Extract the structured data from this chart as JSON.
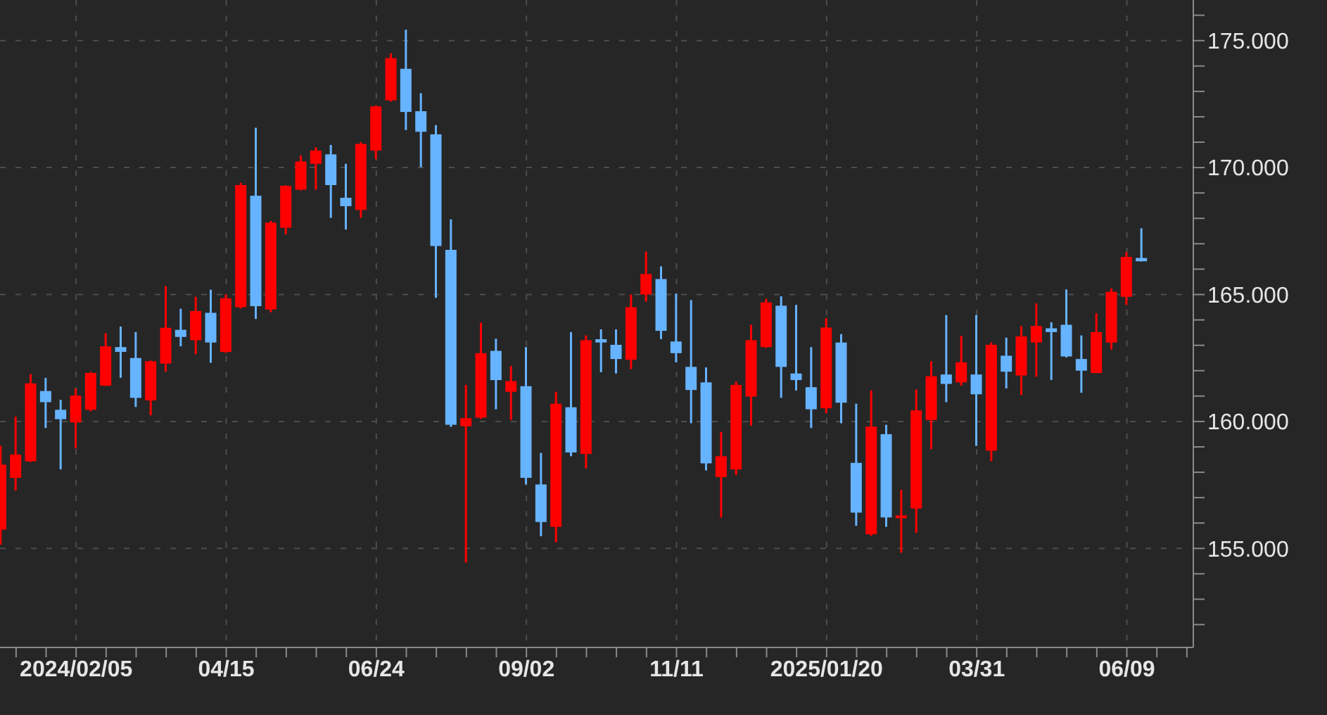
{
  "chart_data": {
    "type": "candlestick",
    "x": [
      "2024-01-01",
      "2024-01-08",
      "2024-01-15",
      "2024-01-22",
      "2024-01-29",
      "2024-02-05",
      "2024-02-12",
      "2024-02-19",
      "2024-02-26",
      "2024-03-04",
      "2024-03-11",
      "2024-03-18",
      "2024-03-25",
      "2024-04-01",
      "2024-04-08",
      "2024-04-15",
      "2024-04-22",
      "2024-04-29",
      "2024-05-06",
      "2024-05-13",
      "2024-05-20",
      "2024-05-27",
      "2024-06-03",
      "2024-06-10",
      "2024-06-17",
      "2024-06-24",
      "2024-07-01",
      "2024-07-08",
      "2024-07-15",
      "2024-07-22",
      "2024-07-29",
      "2024-08-05",
      "2024-08-12",
      "2024-08-19",
      "2024-08-26",
      "2024-09-02",
      "2024-09-09",
      "2024-09-16",
      "2024-09-23",
      "2024-09-30",
      "2024-10-07",
      "2024-10-14",
      "2024-10-21",
      "2024-10-28",
      "2024-11-04",
      "2024-11-11",
      "2024-11-18",
      "2024-11-25",
      "2024-12-02",
      "2024-12-09",
      "2024-12-16",
      "2024-12-23",
      "2024-12-30",
      "2025-01-06",
      "2025-01-13",
      "2025-01-20",
      "2025-01-27",
      "2025-02-03",
      "2025-02-10",
      "2025-02-17",
      "2025-02-24",
      "2025-03-03",
      "2025-03-10",
      "2025-03-17",
      "2025-03-24",
      "2025-03-31",
      "2025-04-07",
      "2025-04-14",
      "2025-04-21",
      "2025-04-28",
      "2025-05-05",
      "2025-05-12",
      "2025-05-19",
      "2025-05-26",
      "2025-06-02",
      "2025-06-09",
      "2025-06-16"
    ],
    "ohlc": [
      [
        155.74,
        159.04,
        155.15,
        158.3
      ],
      [
        157.78,
        160.19,
        157.28,
        158.7
      ],
      [
        158.43,
        161.87,
        158.4,
        161.5
      ],
      [
        161.2,
        161.72,
        159.74,
        160.76
      ],
      [
        160.46,
        160.85,
        158.11,
        160.09
      ],
      [
        159.96,
        161.3,
        158.94,
        161.02
      ],
      [
        160.46,
        161.95,
        160.4,
        161.91
      ],
      [
        161.41,
        163.48,
        161.4,
        162.96
      ],
      [
        162.93,
        163.74,
        161.72,
        162.74
      ],
      [
        162.5,
        163.52,
        160.57,
        160.93
      ],
      [
        160.83,
        162.4,
        160.24,
        162.37
      ],
      [
        162.28,
        165.33,
        161.96,
        163.69
      ],
      [
        163.61,
        164.44,
        162.96,
        163.33
      ],
      [
        163.2,
        164.91,
        162.65,
        164.35
      ],
      [
        164.28,
        165.19,
        162.31,
        163.11
      ],
      [
        162.74,
        165.0,
        162.7,
        164.85
      ],
      [
        164.5,
        169.4,
        164.45,
        169.31
      ],
      [
        168.89,
        171.57,
        164.04,
        164.54
      ],
      [
        164.41,
        167.9,
        164.3,
        167.83
      ],
      [
        167.63,
        169.3,
        167.37,
        169.28
      ],
      [
        169.13,
        170.48,
        169.1,
        170.24
      ],
      [
        170.15,
        170.8,
        169.13,
        170.67
      ],
      [
        170.52,
        170.89,
        168.02,
        169.31
      ],
      [
        168.81,
        170.15,
        167.56,
        168.48
      ],
      [
        168.33,
        171.0,
        168.02,
        170.93
      ],
      [
        170.67,
        172.45,
        170.33,
        172.41
      ],
      [
        172.65,
        174.5,
        172.6,
        174.31
      ],
      [
        173.89,
        175.43,
        171.48,
        172.19
      ],
      [
        172.22,
        172.93,
        170.02,
        171.41
      ],
      [
        171.31,
        171.67,
        164.87,
        166.91
      ],
      [
        166.76,
        167.96,
        159.78,
        159.87
      ],
      [
        159.81,
        161.44,
        154.44,
        160.13
      ],
      [
        160.15,
        163.89,
        160.1,
        162.69
      ],
      [
        162.78,
        163.26,
        160.48,
        161.63
      ],
      [
        161.17,
        162.19,
        160.06,
        161.59
      ],
      [
        161.39,
        162.93,
        157.52,
        157.78
      ],
      [
        157.52,
        158.76,
        155.48,
        156.04
      ],
      [
        155.85,
        161.17,
        155.24,
        160.7
      ],
      [
        160.56,
        163.52,
        158.63,
        158.78
      ],
      [
        158.72,
        163.39,
        158.15,
        163.2
      ],
      [
        163.24,
        163.63,
        161.94,
        163.11
      ],
      [
        163.02,
        163.63,
        161.89,
        162.46
      ],
      [
        162.43,
        165.0,
        162.06,
        164.5
      ],
      [
        165.0,
        166.69,
        164.72,
        165.81
      ],
      [
        165.61,
        166.11,
        163.24,
        163.57
      ],
      [
        163.15,
        165.04,
        162.33,
        162.69
      ],
      [
        162.15,
        164.78,
        159.93,
        161.24
      ],
      [
        161.54,
        162.13,
        158.07,
        158.35
      ],
      [
        157.81,
        159.59,
        156.22,
        158.63
      ],
      [
        158.11,
        161.57,
        157.89,
        161.44
      ],
      [
        160.98,
        163.81,
        159.83,
        163.2
      ],
      [
        162.93,
        164.83,
        162.9,
        164.69
      ],
      [
        164.56,
        164.93,
        160.93,
        162.15
      ],
      [
        161.89,
        164.59,
        161.22,
        161.63
      ],
      [
        161.35,
        162.93,
        159.74,
        160.48
      ],
      [
        160.52,
        164.07,
        160.33,
        163.7
      ],
      [
        163.11,
        163.44,
        159.93,
        160.74
      ],
      [
        158.37,
        160.7,
        155.89,
        156.41
      ],
      [
        155.56,
        161.22,
        155.5,
        159.8
      ],
      [
        159.5,
        159.87,
        155.85,
        156.22
      ],
      [
        156.19,
        157.31,
        154.83,
        156.3
      ],
      [
        156.57,
        161.26,
        155.61,
        160.44
      ],
      [
        160.06,
        162.37,
        158.91,
        161.78
      ],
      [
        161.85,
        164.19,
        160.76,
        161.48
      ],
      [
        161.54,
        163.37,
        161.41,
        162.33
      ],
      [
        161.85,
        164.19,
        159.04,
        161.07
      ],
      [
        158.85,
        163.11,
        158.44,
        163.02
      ],
      [
        162.59,
        163.3,
        161.3,
        161.96
      ],
      [
        161.81,
        163.76,
        161.04,
        163.35
      ],
      [
        163.11,
        164.65,
        161.76,
        163.76
      ],
      [
        163.67,
        163.91,
        161.63,
        163.52
      ],
      [
        163.81,
        165.2,
        162.52,
        162.56
      ],
      [
        162.46,
        163.39,
        161.13,
        162.0
      ],
      [
        161.91,
        164.26,
        161.9,
        163.52
      ],
      [
        163.11,
        165.24,
        162.83,
        165.11
      ],
      [
        164.91,
        166.67,
        164.59,
        166.48
      ],
      [
        166.44,
        167.61,
        166.3,
        166.31
      ]
    ],
    "colors": [
      "#ff0000",
      "#ff0000",
      "#ff0000",
      "#66b3ff",
      "#66b3ff",
      "#ff0000",
      "#ff0000",
      "#ff0000",
      "#66b3ff",
      "#66b3ff",
      "#ff0000",
      "#ff0000",
      "#66b3ff",
      "#ff0000",
      "#66b3ff",
      "#ff0000",
      "#ff0000",
      "#66b3ff",
      "#ff0000",
      "#ff0000",
      "#ff0000",
      "#ff0000",
      "#66b3ff",
      "#66b3ff",
      "#ff0000",
      "#ff0000",
      "#ff0000",
      "#66b3ff",
      "#66b3ff",
      "#66b3ff",
      "#66b3ff",
      "#ff0000",
      "#ff0000",
      "#66b3ff",
      "#ff0000",
      "#66b3ff",
      "#66b3ff",
      "#ff0000",
      "#66b3ff",
      "#ff0000",
      "#66b3ff",
      "#66b3ff",
      "#ff0000",
      "#ff0000",
      "#66b3ff",
      "#66b3ff",
      "#66b3ff",
      "#66b3ff",
      "#ff0000",
      "#ff0000",
      "#ff0000",
      "#ff0000",
      "#66b3ff",
      "#66b3ff",
      "#66b3ff",
      "#ff0000",
      "#66b3ff",
      "#66b3ff",
      "#ff0000",
      "#66b3ff",
      "#ff0000",
      "#ff0000",
      "#ff0000",
      "#66b3ff",
      "#ff0000",
      "#66b3ff",
      "#ff0000",
      "#66b3ff",
      "#ff0000",
      "#ff0000",
      "#66b3ff",
      "#66b3ff",
      "#66b3ff",
      "#ff0000",
      "#ff0000",
      "#ff0000",
      "#66b3ff"
    ],
    "xlim": [
      "2023-12-31T12:00",
      "2025-07-10"
    ],
    "ylim": [
      151.1,
      176.6
    ],
    "xticks": [
      {
        "value": "2024-01-08",
        "label": null
      },
      {
        "value": "2024-01-22",
        "label": null
      },
      {
        "value": "2024-02-05",
        "label": "2024/02/05"
      },
      {
        "value": "2024-02-19",
        "label": null
      },
      {
        "value": "2024-03-04",
        "label": null
      },
      {
        "value": "2024-03-18",
        "label": null
      },
      {
        "value": "2024-04-01",
        "label": null
      },
      {
        "value": "2024-04-15",
        "label": "04/15"
      },
      {
        "value": "2024-04-29",
        "label": null
      },
      {
        "value": "2024-05-13",
        "label": null
      },
      {
        "value": "2024-05-27",
        "label": null
      },
      {
        "value": "2024-06-10",
        "label": null
      },
      {
        "value": "2024-06-24",
        "label": "06/24"
      },
      {
        "value": "2024-07-08",
        "label": null
      },
      {
        "value": "2024-07-22",
        "label": null
      },
      {
        "value": "2024-08-05",
        "label": null
      },
      {
        "value": "2024-08-19",
        "label": null
      },
      {
        "value": "2024-09-02",
        "label": "09/02"
      },
      {
        "value": "2024-09-16",
        "label": null
      },
      {
        "value": "2024-09-30",
        "label": null
      },
      {
        "value": "2024-10-14",
        "label": null
      },
      {
        "value": "2024-10-28",
        "label": null
      },
      {
        "value": "2024-11-11",
        "label": "11/11"
      },
      {
        "value": "2024-11-25",
        "label": null
      },
      {
        "value": "2024-12-09",
        "label": null
      },
      {
        "value": "2024-12-23",
        "label": null
      },
      {
        "value": "2025-01-06",
        "label": null
      },
      {
        "value": "2025-01-20",
        "label": "2025/01/20"
      },
      {
        "value": "2025-02-03",
        "label": null
      },
      {
        "value": "2025-02-17",
        "label": null
      },
      {
        "value": "2025-03-03",
        "label": null
      },
      {
        "value": "2025-03-17",
        "label": null
      },
      {
        "value": "2025-03-31",
        "label": "03/31"
      },
      {
        "value": "2025-04-14",
        "label": null
      },
      {
        "value": "2025-04-28",
        "label": null
      },
      {
        "value": "2025-05-12",
        "label": null
      },
      {
        "value": "2025-05-26",
        "label": null
      },
      {
        "value": "2025-06-09",
        "label": "06/09"
      },
      {
        "value": "2025-06-23",
        "label": null
      },
      {
        "value": "2025-07-07",
        "label": null
      }
    ],
    "yticks": [
      {
        "value": 152,
        "label": null
      },
      {
        "value": 153,
        "label": null
      },
      {
        "value": 154,
        "label": null
      },
      {
        "value": 155,
        "label": "155.000"
      },
      {
        "value": 156,
        "label": null
      },
      {
        "value": 157,
        "label": null
      },
      {
        "value": 158,
        "label": null
      },
      {
        "value": 159,
        "label": null
      },
      {
        "value": 160,
        "label": "160.000"
      },
      {
        "value": 161,
        "label": null
      },
      {
        "value": 162,
        "label": null
      },
      {
        "value": 163,
        "label": null
      },
      {
        "value": 164,
        "label": null
      },
      {
        "value": 165,
        "label": "165.000"
      },
      {
        "value": 166,
        "label": null
      },
      {
        "value": 167,
        "label": null
      },
      {
        "value": 168,
        "label": null
      },
      {
        "value": 169,
        "label": null
      },
      {
        "value": 170,
        "label": "170.000"
      },
      {
        "value": 171,
        "label": null
      },
      {
        "value": 172,
        "label": null
      },
      {
        "value": 173,
        "label": null
      },
      {
        "value": 174,
        "label": null
      },
      {
        "value": 175,
        "label": "175.000"
      },
      {
        "value": 176,
        "label": null
      }
    ],
    "grid": true
  }
}
